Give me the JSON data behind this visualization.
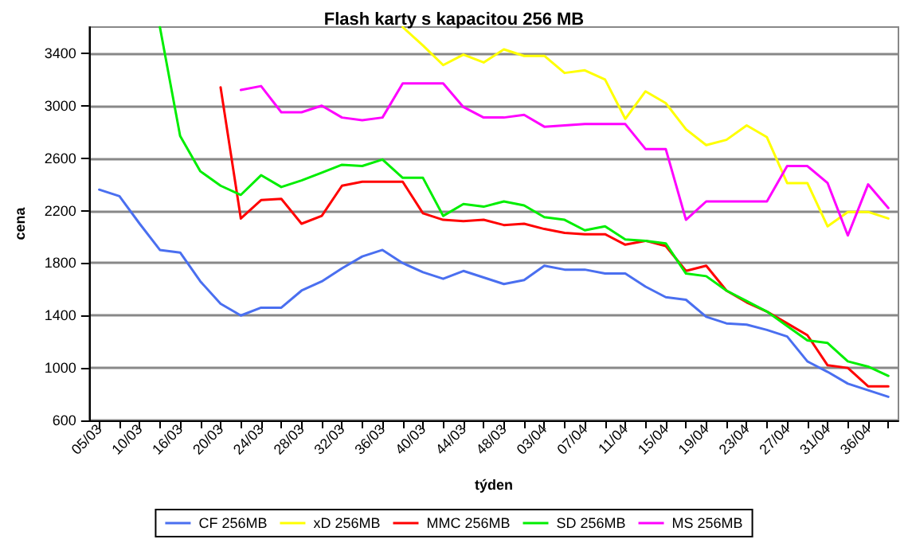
{
  "chart_data": {
    "type": "line",
    "title": "Flash karty s kapacitou 256 MB",
    "xlabel": "týden",
    "ylabel": "cena",
    "categories": [
      "05/03",
      null,
      "10/03",
      null,
      "16/03",
      null,
      "20/03",
      null,
      "24/03",
      null,
      "28/03",
      null,
      "32/03",
      null,
      "36/03",
      null,
      "40/03",
      null,
      "44/03",
      null,
      "48/03",
      null,
      "03/04",
      null,
      "07/04",
      null,
      "11/04",
      null,
      "15/04",
      null,
      "19/04",
      null,
      "23/04",
      null,
      "27/04",
      null,
      "31/04",
      null,
      "36/04",
      null
    ],
    "series": [
      {
        "name": "CF 256MB",
        "color": "#4a6ff0",
        "values": [
          2360,
          2310,
          2100,
          1900,
          1880,
          1660,
          1490,
          1400,
          1460,
          1460,
          1590,
          1660,
          1760,
          1850,
          1900,
          1800,
          1730,
          1680,
          1740,
          1690,
          1640,
          1670,
          1780,
          1750,
          1750,
          1720,
          1720,
          1620,
          1540,
          1520,
          1390,
          1340,
          1330,
          1290,
          1240,
          1050,
          970,
          880,
          830,
          780
        ]
      },
      {
        "name": "xD 256MB",
        "color": "#ffff00",
        "values": [
          null,
          null,
          null,
          null,
          null,
          null,
          null,
          null,
          null,
          null,
          null,
          null,
          null,
          null,
          null,
          3600,
          3460,
          3310,
          3390,
          3330,
          3430,
          3380,
          3380,
          3250,
          3270,
          3200,
          2900,
          3110,
          3020,
          2820,
          2700,
          2740,
          2850,
          2760,
          2410,
          2410,
          2080,
          2190,
          2190,
          2140
        ]
      },
      {
        "name": "MMC 256MB",
        "color": "#ff0000",
        "values": [
          null,
          null,
          null,
          null,
          null,
          null,
          3140,
          2140,
          2280,
          2290,
          2100,
          2160,
          2390,
          2420,
          2420,
          2420,
          2180,
          2130,
          2120,
          2130,
          2090,
          2100,
          2060,
          2030,
          2020,
          2020,
          1940,
          1970,
          1930,
          1740,
          1780,
          1590,
          1500,
          1430,
          1340,
          1250,
          1020,
          1000,
          860,
          860
        ]
      },
      {
        "name": "SD 256MB",
        "color": "#00ee00",
        "values": [
          null,
          null,
          null,
          3600,
          2770,
          2500,
          2390,
          2320,
          2470,
          2380,
          2430,
          2490,
          2550,
          2540,
          2590,
          2450,
          2450,
          2160,
          2250,
          2230,
          2270,
          2240,
          2150,
          2130,
          2050,
          2080,
          1980,
          1970,
          1950,
          1720,
          1700,
          1590,
          1510,
          1430,
          1320,
          1210,
          1190,
          1050,
          1010,
          940
        ]
      },
      {
        "name": "MS 256MB",
        "color": "#ff00ff",
        "values": [
          null,
          null,
          null,
          null,
          null,
          null,
          null,
          3120,
          3150,
          2950,
          2950,
          3000,
          2910,
          2890,
          2910,
          3170,
          3170,
          3170,
          2990,
          2910,
          2910,
          2930,
          2840,
          2850,
          2860,
          2860,
          2860,
          2670,
          2670,
          2130,
          2270,
          2270,
          2270,
          2270,
          2540,
          2540,
          2410,
          2010,
          2400,
          2220
        ]
      }
    ],
    "ylim": [
      600,
      3600
    ],
    "yticks": [
      600,
      1000,
      1400,
      1800,
      2200,
      2600,
      3000,
      3400
    ],
    "grid": "y",
    "legend": "bottom",
    "marker": "none",
    "line_style": "solid"
  }
}
